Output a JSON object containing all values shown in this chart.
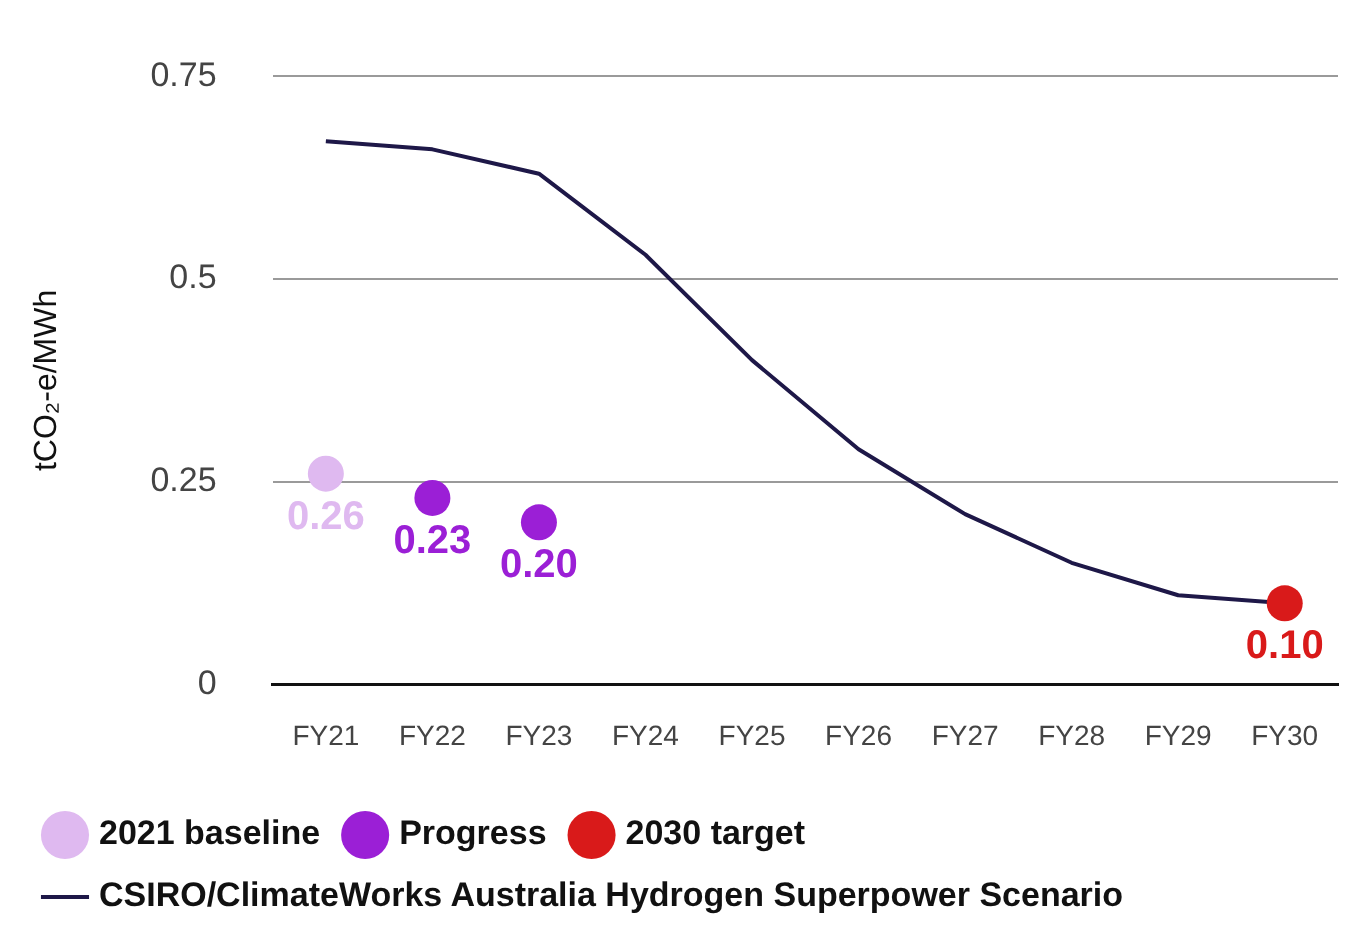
{
  "chart_data": {
    "type": "line",
    "ylabel": "tCO₂-e/MWh",
    "categories": [
      "FY21",
      "FY22",
      "FY23",
      "FY24",
      "FY25",
      "FY26",
      "FY27",
      "FY28",
      "FY29",
      "FY30"
    ],
    "series": [
      {
        "name": "2021 baseline",
        "type": "scatter",
        "marker": "circle",
        "color": "#dfb9f0",
        "x": [
          "FY21"
        ],
        "values": [
          0.26
        ],
        "value_labels": [
          "0.26"
        ]
      },
      {
        "name": "Progress",
        "type": "scatter",
        "marker": "circle",
        "color": "#9b1fd6",
        "x": [
          "FY22",
          "FY23"
        ],
        "values": [
          0.23,
          0.2
        ],
        "value_labels": [
          "0.23",
          "0.20"
        ]
      },
      {
        "name": "2030 target",
        "type": "scatter",
        "marker": "circle",
        "color": "#d91a1a",
        "x": [
          "FY30"
        ],
        "values": [
          0.1
        ],
        "value_labels": [
          "0.10"
        ]
      },
      {
        "name": "CSIRO/ClimateWorks Australia Hydrogen Superpower Scenario",
        "marker": "none",
        "color": "#1e1848",
        "values": [
          0.67,
          0.66,
          0.63,
          0.53,
          0.4,
          0.29,
          0.21,
          0.15,
          0.11,
          0.1
        ]
      }
    ],
    "ylim": [
      0,
      0.75
    ],
    "yticks": [
      0,
      0.25,
      0.5,
      0.75
    ],
    "grid": "y",
    "legend": "bottom",
    "line_style": "solid"
  }
}
